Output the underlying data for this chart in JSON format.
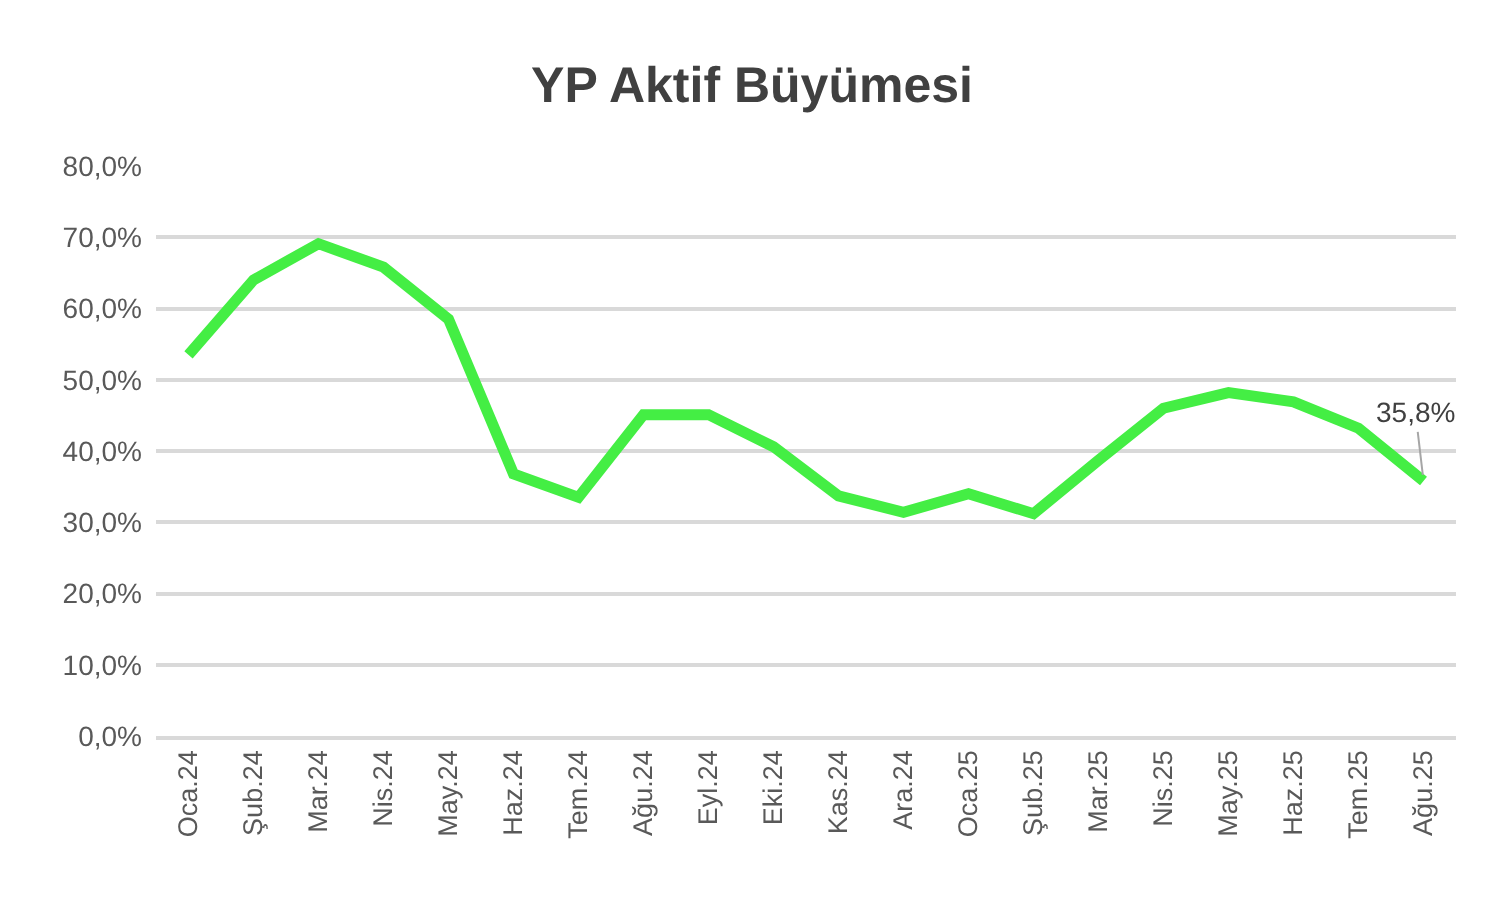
{
  "chart_data": {
    "type": "line",
    "title": "YP Aktif Büyümesi",
    "categories": [
      "Oca.24",
      "Şub.24",
      "Mar.24",
      "Nis.24",
      "May.24",
      "Haz.24",
      "Tem.24",
      "Ağu.24",
      "Eyl.24",
      "Eki.24",
      "Kas.24",
      "Ara.24",
      "Oca.25",
      "Şub.25",
      "Mar.25",
      "Nis.25",
      "May.25",
      "Haz.25",
      "Tem.25",
      "Ağu.25"
    ],
    "series": [
      {
        "color": "#44ee44",
        "values": [
          53.5,
          64.0,
          69.1,
          65.8,
          58.5,
          36.8,
          33.5,
          45.1,
          45.1,
          40.6,
          33.7,
          31.4,
          34.0,
          31.2,
          38.7,
          46.0,
          48.2,
          46.9,
          43.2,
          35.8
        ],
        "value_labels": [
          null,
          null,
          null,
          null,
          null,
          null,
          null,
          null,
          null,
          null,
          null,
          null,
          null,
          null,
          null,
          null,
          null,
          null,
          null,
          "35,8%"
        ]
      }
    ],
    "ylim": [
      0,
      80
    ],
    "yticks": [
      {
        "value": 0,
        "label": "0,0%"
      },
      {
        "value": 10,
        "label": "10,0%"
      },
      {
        "value": 20,
        "label": "20,0%"
      },
      {
        "value": 30,
        "label": "30,0%"
      },
      {
        "value": 40,
        "label": "40,0%"
      },
      {
        "value": 50,
        "label": "50,0%"
      },
      {
        "value": 60,
        "label": "60,0%"
      },
      {
        "value": 70,
        "label": "70,0%"
      },
      {
        "value": 80,
        "label": "80,0%"
      }
    ],
    "grid": "y",
    "marker": "none",
    "line_style": "solid"
  }
}
